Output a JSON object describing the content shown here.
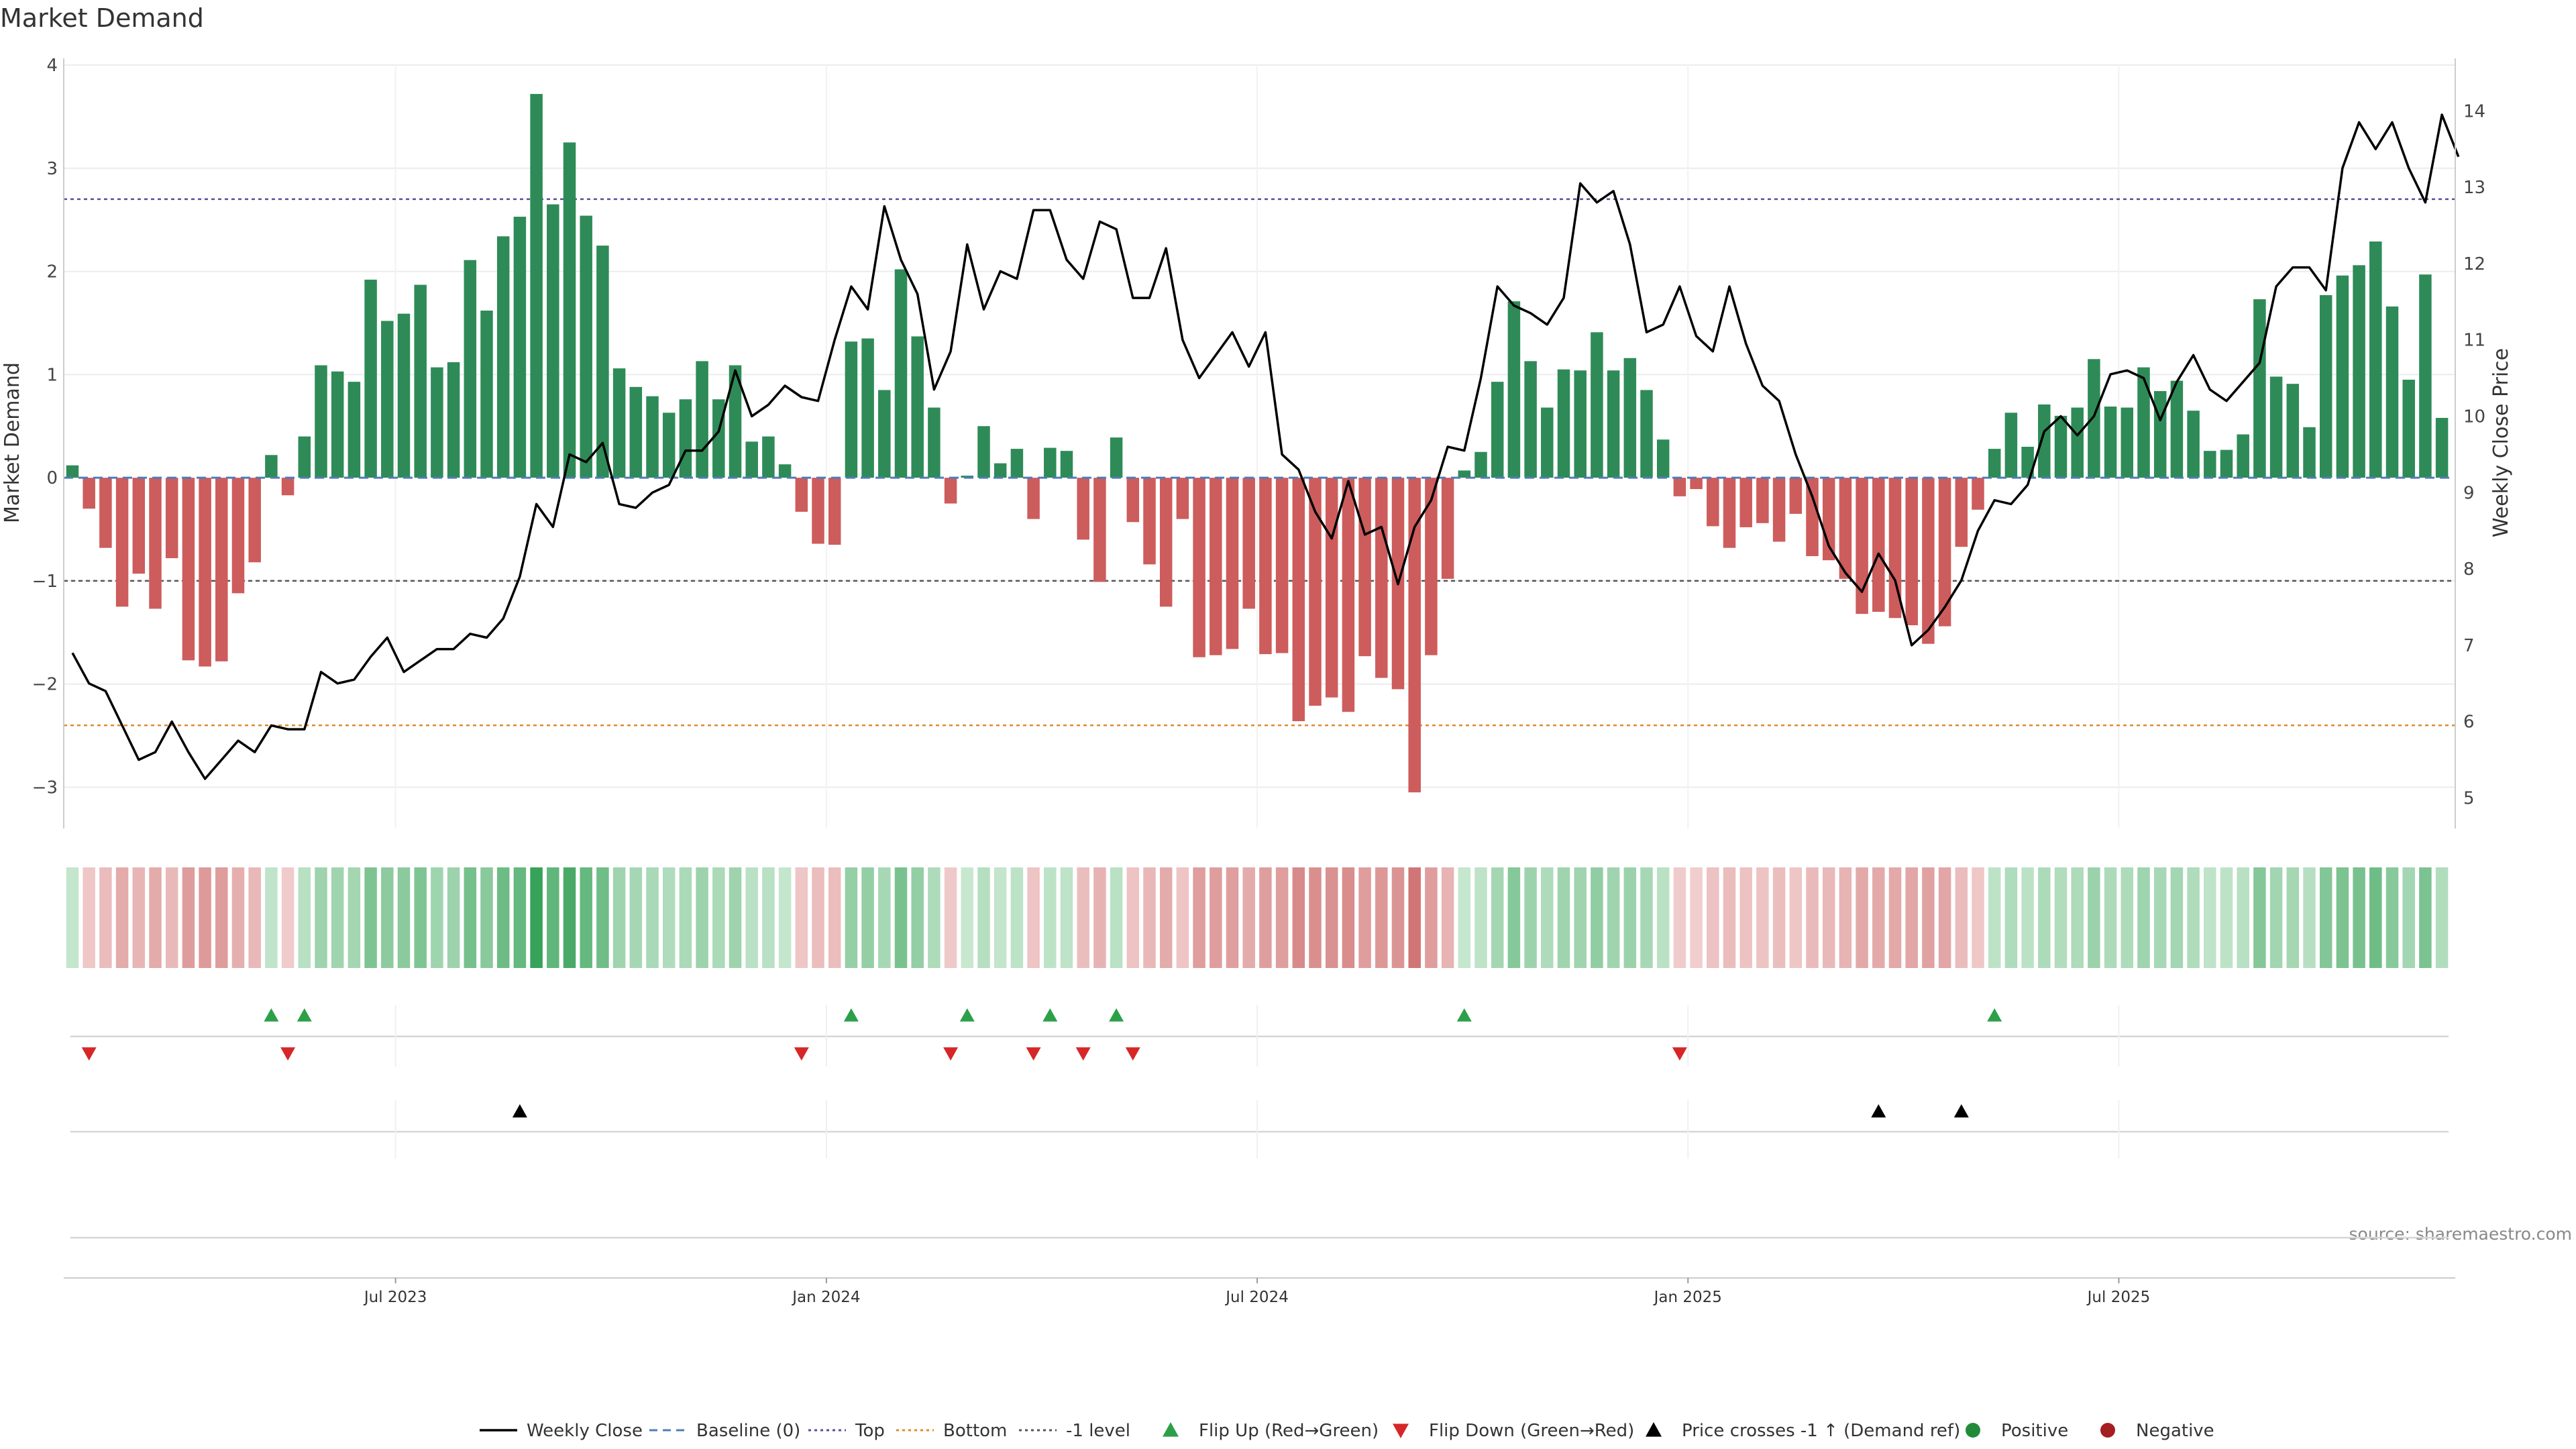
{
  "chart_data": {
    "type": "bar",
    "title": "Market Demand",
    "ylabel": "Market Demand",
    "y2label": "Weekly Close Price",
    "ylim": [
      -3.4,
      4
    ],
    "y2lim": [
      4.6,
      14.6
    ],
    "yticks": [
      "4",
      "3",
      "2",
      "1",
      "0",
      "−1",
      "−2",
      "−3"
    ],
    "y2ticks": [
      "14",
      "13",
      "12",
      "11",
      "10",
      "9",
      "8",
      "7",
      "6",
      "5"
    ],
    "date_ticks": [
      {
        "label": "Jul 2023",
        "week": 20
      },
      {
        "label": "Jan 2024",
        "week": 46
      },
      {
        "label": "Jul 2024",
        "week": 72
      },
      {
        "label": "Jan 2025",
        "week": 98
      },
      {
        "label": "Jul 2025",
        "week": 124
      }
    ],
    "reference_lines": {
      "top": 2.7,
      "bottom": -2.4,
      "minus_one": -1,
      "baseline": 0
    },
    "demand": [
      0.12,
      -0.3,
      -0.68,
      -1.25,
      -0.93,
      -1.27,
      -0.78,
      -1.77,
      -1.83,
      -1.78,
      -1.12,
      -0.82,
      0.22,
      -0.17,
      0.4,
      1.09,
      1.03,
      0.93,
      1.92,
      1.52,
      1.59,
      1.87,
      1.07,
      1.12,
      2.11,
      1.62,
      2.34,
      2.53,
      3.72,
      2.65,
      3.25,
      2.54,
      2.25,
      1.06,
      0.88,
      0.79,
      0.63,
      0.76,
      1.13,
      0.76,
      1.09,
      0.35,
      0.4,
      0.13,
      -0.33,
      -0.64,
      -0.65,
      1.32,
      1.35,
      0.85,
      2.02,
      1.37,
      0.68,
      -0.25,
      0.02,
      0.5,
      0.14,
      0.28,
      -0.4,
      0.29,
      0.26,
      -0.6,
      -1.01,
      0.39,
      -0.43,
      -0.84,
      -1.25,
      -0.4,
      -1.74,
      -1.72,
      -1.66,
      -1.27,
      -1.71,
      -1.7,
      -2.36,
      -2.21,
      -2.13,
      -2.27,
      -1.73,
      -1.94,
      -2.05,
      -3.05,
      -1.72,
      -0.98,
      0.07,
      0.25,
      0.93,
      1.71,
      1.13,
      0.68,
      1.05,
      1.04,
      1.41,
      1.04,
      1.16,
      0.85,
      0.37,
      -0.18,
      -0.11,
      -0.47,
      -0.68,
      -0.48,
      -0.44,
      -0.62,
      -0.35,
      -0.76,
      -0.8,
      -0.98,
      -1.32,
      -1.3,
      -1.36,
      -1.43,
      -1.61,
      -1.44,
      -0.67,
      -0.31,
      0.28,
      0.63,
      0.3,
      0.71,
      0.6,
      0.68,
      1.15,
      0.69,
      0.68,
      1.07,
      0.84,
      0.94,
      0.65,
      0.26,
      0.27,
      0.42,
      1.73,
      0.98,
      0.91,
      0.49,
      1.77,
      1.96,
      2.06,
      2.29,
      1.66,
      0.95,
      1.97,
      0.58
    ],
    "weekly_close": [
      6.9,
      6.5,
      6.4,
      5.95,
      5.5,
      5.6,
      6.0,
      5.6,
      5.25,
      5.5,
      5.75,
      5.6,
      5.95,
      5.9,
      5.9,
      6.65,
      6.5,
      6.55,
      6.85,
      7.1,
      6.65,
      6.8,
      6.95,
      6.95,
      7.15,
      7.1,
      7.35,
      7.9,
      8.85,
      8.55,
      9.5,
      9.4,
      9.65,
      8.85,
      8.8,
      9.0,
      9.1,
      9.55,
      9.55,
      9.8,
      10.6,
      10.0,
      10.15,
      10.4,
      10.25,
      10.2,
      11.0,
      11.7,
      11.4,
      12.75,
      12.05,
      11.6,
      10.35,
      10.85,
      12.25,
      11.4,
      11.9,
      11.8,
      12.7,
      12.7,
      12.05,
      11.8,
      12.55,
      12.45,
      11.55,
      11.55,
      12.2,
      11.0,
      10.5,
      10.8,
      11.1,
      10.65,
      11.1,
      9.5,
      9.3,
      8.75,
      8.4,
      9.15,
      8.45,
      8.55,
      7.8,
      8.55,
      8.9,
      9.6,
      9.55,
      10.5,
      11.7,
      11.45,
      11.35,
      11.2,
      11.55,
      13.05,
      12.8,
      12.95,
      12.25,
      11.1,
      11.2,
      11.7,
      11.05,
      10.85,
      11.7,
      10.95,
      10.4,
      10.2,
      9.5,
      8.95,
      8.3,
      7.95,
      7.7,
      8.2,
      7.85,
      7.0,
      7.2,
      7.5,
      7.85,
      8.5,
      8.9,
      8.85,
      9.1,
      9.8,
      10.0,
      9.75,
      10.0,
      10.55,
      10.6,
      10.5,
      9.95,
      10.45,
      10.8,
      10.35,
      10.2,
      10.45,
      10.7,
      11.7,
      11.95,
      11.95,
      11.65,
      13.25,
      13.85,
      13.5,
      13.85,
      13.25,
      12.8,
      13.95,
      13.4
    ],
    "flip_up_weeks": [
      12,
      14,
      47,
      54,
      59,
      63,
      84,
      116
    ],
    "flip_down_weeks": [
      1,
      13,
      44,
      53,
      58,
      61,
      64,
      97
    ],
    "price_cross_weeks": [
      27,
      109,
      114
    ]
  },
  "legend": [
    {
      "label": "Weekly Close",
      "marker": "solid-line",
      "color": "#000000"
    },
    {
      "label": "Baseline (0)",
      "marker": "dashed-line",
      "color": "#4f7cb8"
    },
    {
      "label": "Top",
      "marker": "dotted-line",
      "color": "#5a4d99"
    },
    {
      "label": "Bottom",
      "marker": "dotted-line",
      "color": "#e08a2c"
    },
    {
      "label": "-1 level",
      "marker": "dotted-line",
      "color": "#555555"
    },
    {
      "label": "Flip Up (Red→Green)",
      "marker": "triangle-up",
      "color": "#2ca048"
    },
    {
      "label": "Flip Down (Green→Red)",
      "marker": "triangle-down",
      "color": "#d62728"
    },
    {
      "label": "Price crosses -1 ↑ (Demand ref)",
      "marker": "triangle-up",
      "color": "#000000"
    },
    {
      "label": "Positive",
      "marker": "circle",
      "color": "#228b3a"
    },
    {
      "label": "Negative",
      "marker": "circle",
      "color": "#a51e22"
    }
  ],
  "colors": {
    "positive_bar": "#2e8b57",
    "negative_bar": "#cd5c5c",
    "flip_up": "#2ca048",
    "flip_down": "#d62728",
    "price_line": "#000000"
  },
  "source": "source: sharemaestro.com"
}
